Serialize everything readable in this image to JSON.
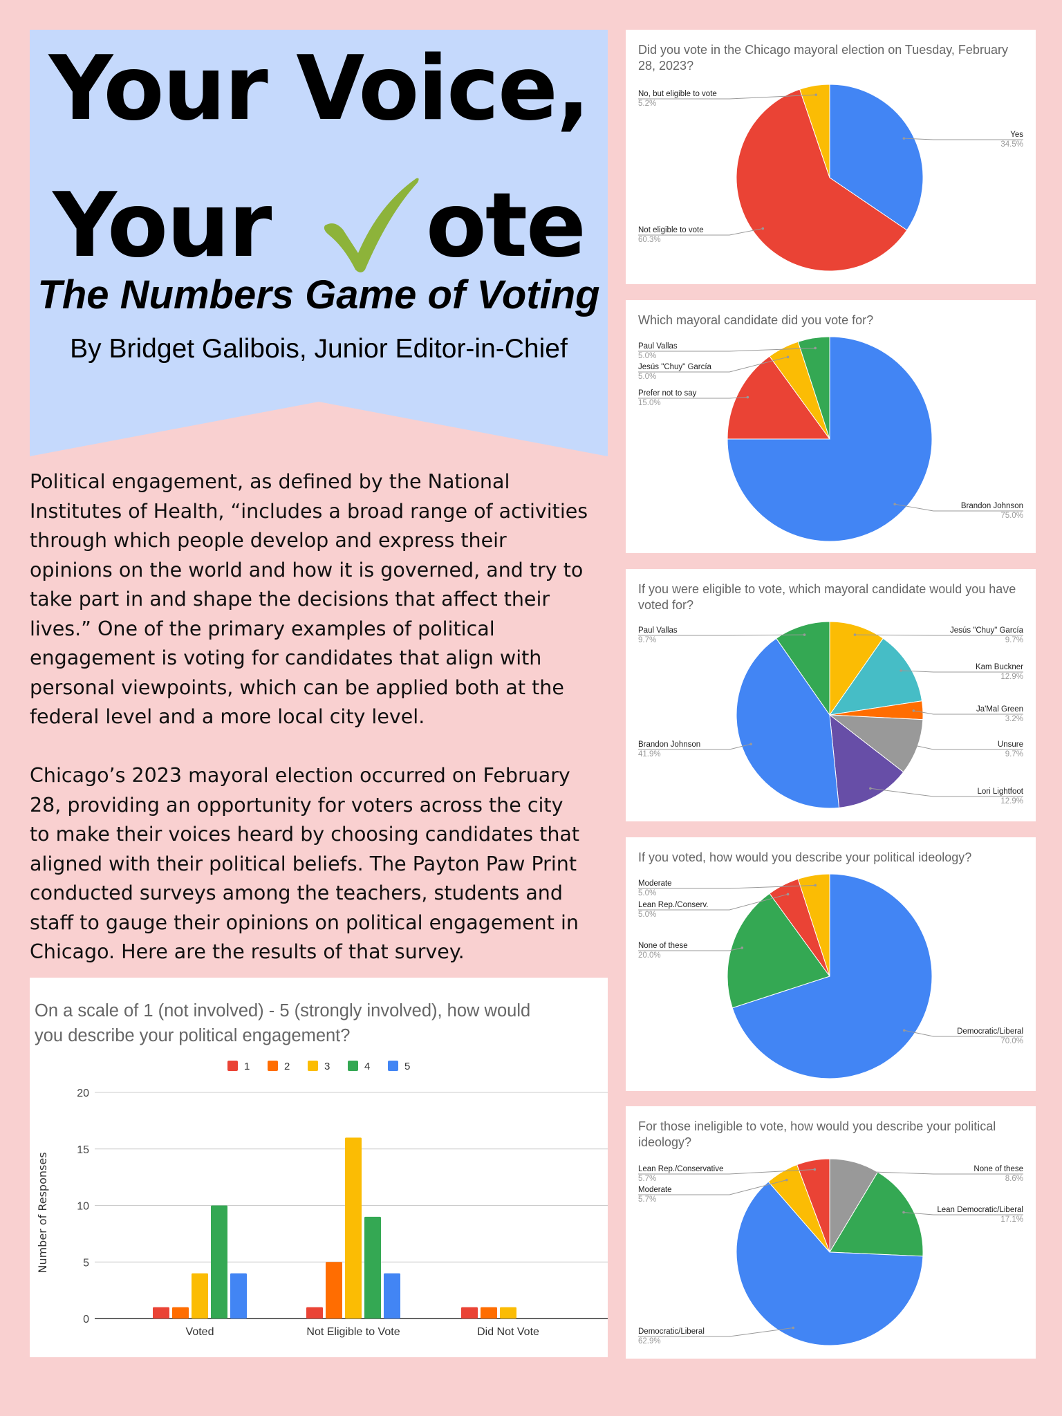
{
  "header": {
    "title_line1": "Your Voice,",
    "title_line2_before": "Your",
    "title_line2_after": "ote",
    "check_icon_color": "#8db33a",
    "subtitle": "The Numbers Game of Voting",
    "byline": "By Bridget Galibois, Junior Editor-in-Chief"
  },
  "colors": {
    "background": "#f9d0d0",
    "header_box": "#c5d9fc"
  },
  "article": {
    "paragraphs": [
      [
        "Political engagement, as defined by the National",
        "Institutes of Health, “includes a broad range of activities",
        "through which people develop and express their",
        "opinions on the world and how it is governed, and try to",
        "take part in and shape the decisions that affect their",
        "lives.” One of the primary examples of political",
        "engagement is voting for candidates that align with",
        "personal viewpoints, which can be applied both at the",
        "federal level and a more local city level."
      ],
      [
        "Chicago’s 2023 mayoral election occurred on February",
        "28, providing an opportunity for voters across the city",
        "to make their voices heard by choosing candidates that",
        "aligned with their political beliefs. The Payton Paw Print",
        "conducted surveys among the teachers, students and",
        "staff to gauge their opinions on political engagement in",
        "Chicago. Here are the results of that survey."
      ]
    ]
  },
  "chart_data": [
    {
      "type": "bar",
      "title": "On a scale of 1 (not involved) - 5 (strongly involved), how would you describe your political engagement?",
      "title_lines": [
        "On a scale of 1 (not involved) - 5 (strongly involved), how would",
        "you describe your political engagement?"
      ],
      "xlabel": "",
      "ylabel": "Number of Responses",
      "ylim": [
        0,
        20
      ],
      "yticks": [
        "0",
        "5",
        "10",
        "15",
        "20"
      ],
      "grid": true,
      "legend_position": "top",
      "categories": [
        "Voted",
        "Not Eligible to Vote",
        "Did Not Vote"
      ],
      "series": [
        {
          "name": "1",
          "color": "#ea4335",
          "values": [
            1,
            1,
            1
          ]
        },
        {
          "name": "2",
          "color": "#ff6d01",
          "values": [
            1,
            5,
            1
          ]
        },
        {
          "name": "3",
          "color": "#fbbc04",
          "values": [
            4,
            16,
            1
          ]
        },
        {
          "name": "4",
          "color": "#34a853",
          "values": [
            10,
            9,
            0
          ]
        },
        {
          "name": "5",
          "color": "#4285f4",
          "values": [
            4,
            4,
            0
          ]
        }
      ]
    },
    {
      "type": "pie",
      "title": "Did you vote in the Chicago mayoral election on Tuesday, February 28, 2023?",
      "slices": [
        {
          "label": "Yes",
          "value": 34.5,
          "pct": "34.5%",
          "color": "#4285f4"
        },
        {
          "label": "Not eligible to vote",
          "value": 60.3,
          "pct": "60.3%",
          "color": "#ea4335"
        },
        {
          "label": "No, but eligible to vote",
          "value": 5.2,
          "pct": "5.2%",
          "color": "#fbbc04"
        }
      ]
    },
    {
      "type": "pie",
      "title": "Which mayoral candidate did you vote for?",
      "slices": [
        {
          "label": "Brandon Johnson",
          "value": 75.0,
          "pct": "75.0%",
          "color": "#4285f4"
        },
        {
          "label": "Prefer not to say",
          "value": 15.0,
          "pct": "15.0%",
          "color": "#ea4335"
        },
        {
          "label": "Jesús \"Chuy\" García",
          "value": 5.0,
          "pct": "5.0%",
          "color": "#fbbc04"
        },
        {
          "label": "Paul Vallas",
          "value": 5.0,
          "pct": "5.0%",
          "color": "#34a853"
        }
      ]
    },
    {
      "type": "pie",
      "title": "If you were eligible to vote, which mayoral candidate would you have voted for?",
      "slices": [
        {
          "label": "Jesús \"Chuy\" García",
          "value": 9.7,
          "pct": "9.7%",
          "color": "#fbbc04"
        },
        {
          "label": "Kam Buckner",
          "value": 12.9,
          "pct": "12.9%",
          "color": "#46bdc6"
        },
        {
          "label": "Ja'Mal Green",
          "value": 3.2,
          "pct": "3.2%",
          "color": "#ff6d01"
        },
        {
          "label": "Unsure",
          "value": 9.7,
          "pct": "9.7%",
          "color": "#999999"
        },
        {
          "label": "Lori Lightfoot",
          "value": 12.9,
          "pct": "12.9%",
          "color": "#674ea7"
        },
        {
          "label": "Brandon Johnson",
          "value": 41.9,
          "pct": "41.9%",
          "color": "#4285f4"
        },
        {
          "label": "Paul Vallas",
          "value": 9.7,
          "pct": "9.7%",
          "color": "#34a853"
        }
      ]
    },
    {
      "type": "pie",
      "title": "If you voted, how would you describe your political ideology?",
      "slices": [
        {
          "label": "Democratic/Liberal",
          "value": 70.0,
          "pct": "70.0%",
          "color": "#4285f4"
        },
        {
          "label": "None of these",
          "value": 20.0,
          "pct": "20.0%",
          "color": "#34a853"
        },
        {
          "label": "Lean Rep./Conserv.",
          "value": 5.0,
          "pct": "5.0%",
          "color": "#ea4335"
        },
        {
          "label": "Moderate",
          "value": 5.0,
          "pct": "5.0%",
          "color": "#fbbc04"
        }
      ]
    },
    {
      "type": "pie",
      "title": "For those ineligible to vote, how would you describe your political ideology?",
      "slices": [
        {
          "label": "None of these",
          "value": 8.6,
          "pct": "8.6%",
          "color": "#999999"
        },
        {
          "label": "Lean Democratic/Liberal",
          "value": 17.1,
          "pct": "17.1%",
          "color": "#34a853"
        },
        {
          "label": "Democratic/Liberal",
          "value": 62.9,
          "pct": "62.9%",
          "color": "#4285f4"
        },
        {
          "label": "Moderate",
          "value": 5.7,
          "pct": "5.7%",
          "color": "#fbbc04"
        },
        {
          "label": "Lean Rep./Conservative",
          "value": 5.7,
          "pct": "5.7%",
          "color": "#ea4335"
        }
      ]
    }
  ]
}
